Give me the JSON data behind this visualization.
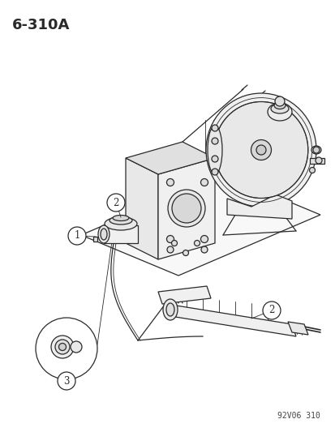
{
  "title": "6-310A",
  "footer": "92V06 310",
  "bg_color": "#ffffff",
  "line_color": "#2a2a2a",
  "figsize": [
    4.14,
    5.33
  ],
  "dpi": 100,
  "title_fontsize": 13,
  "footer_fontsize": 7
}
